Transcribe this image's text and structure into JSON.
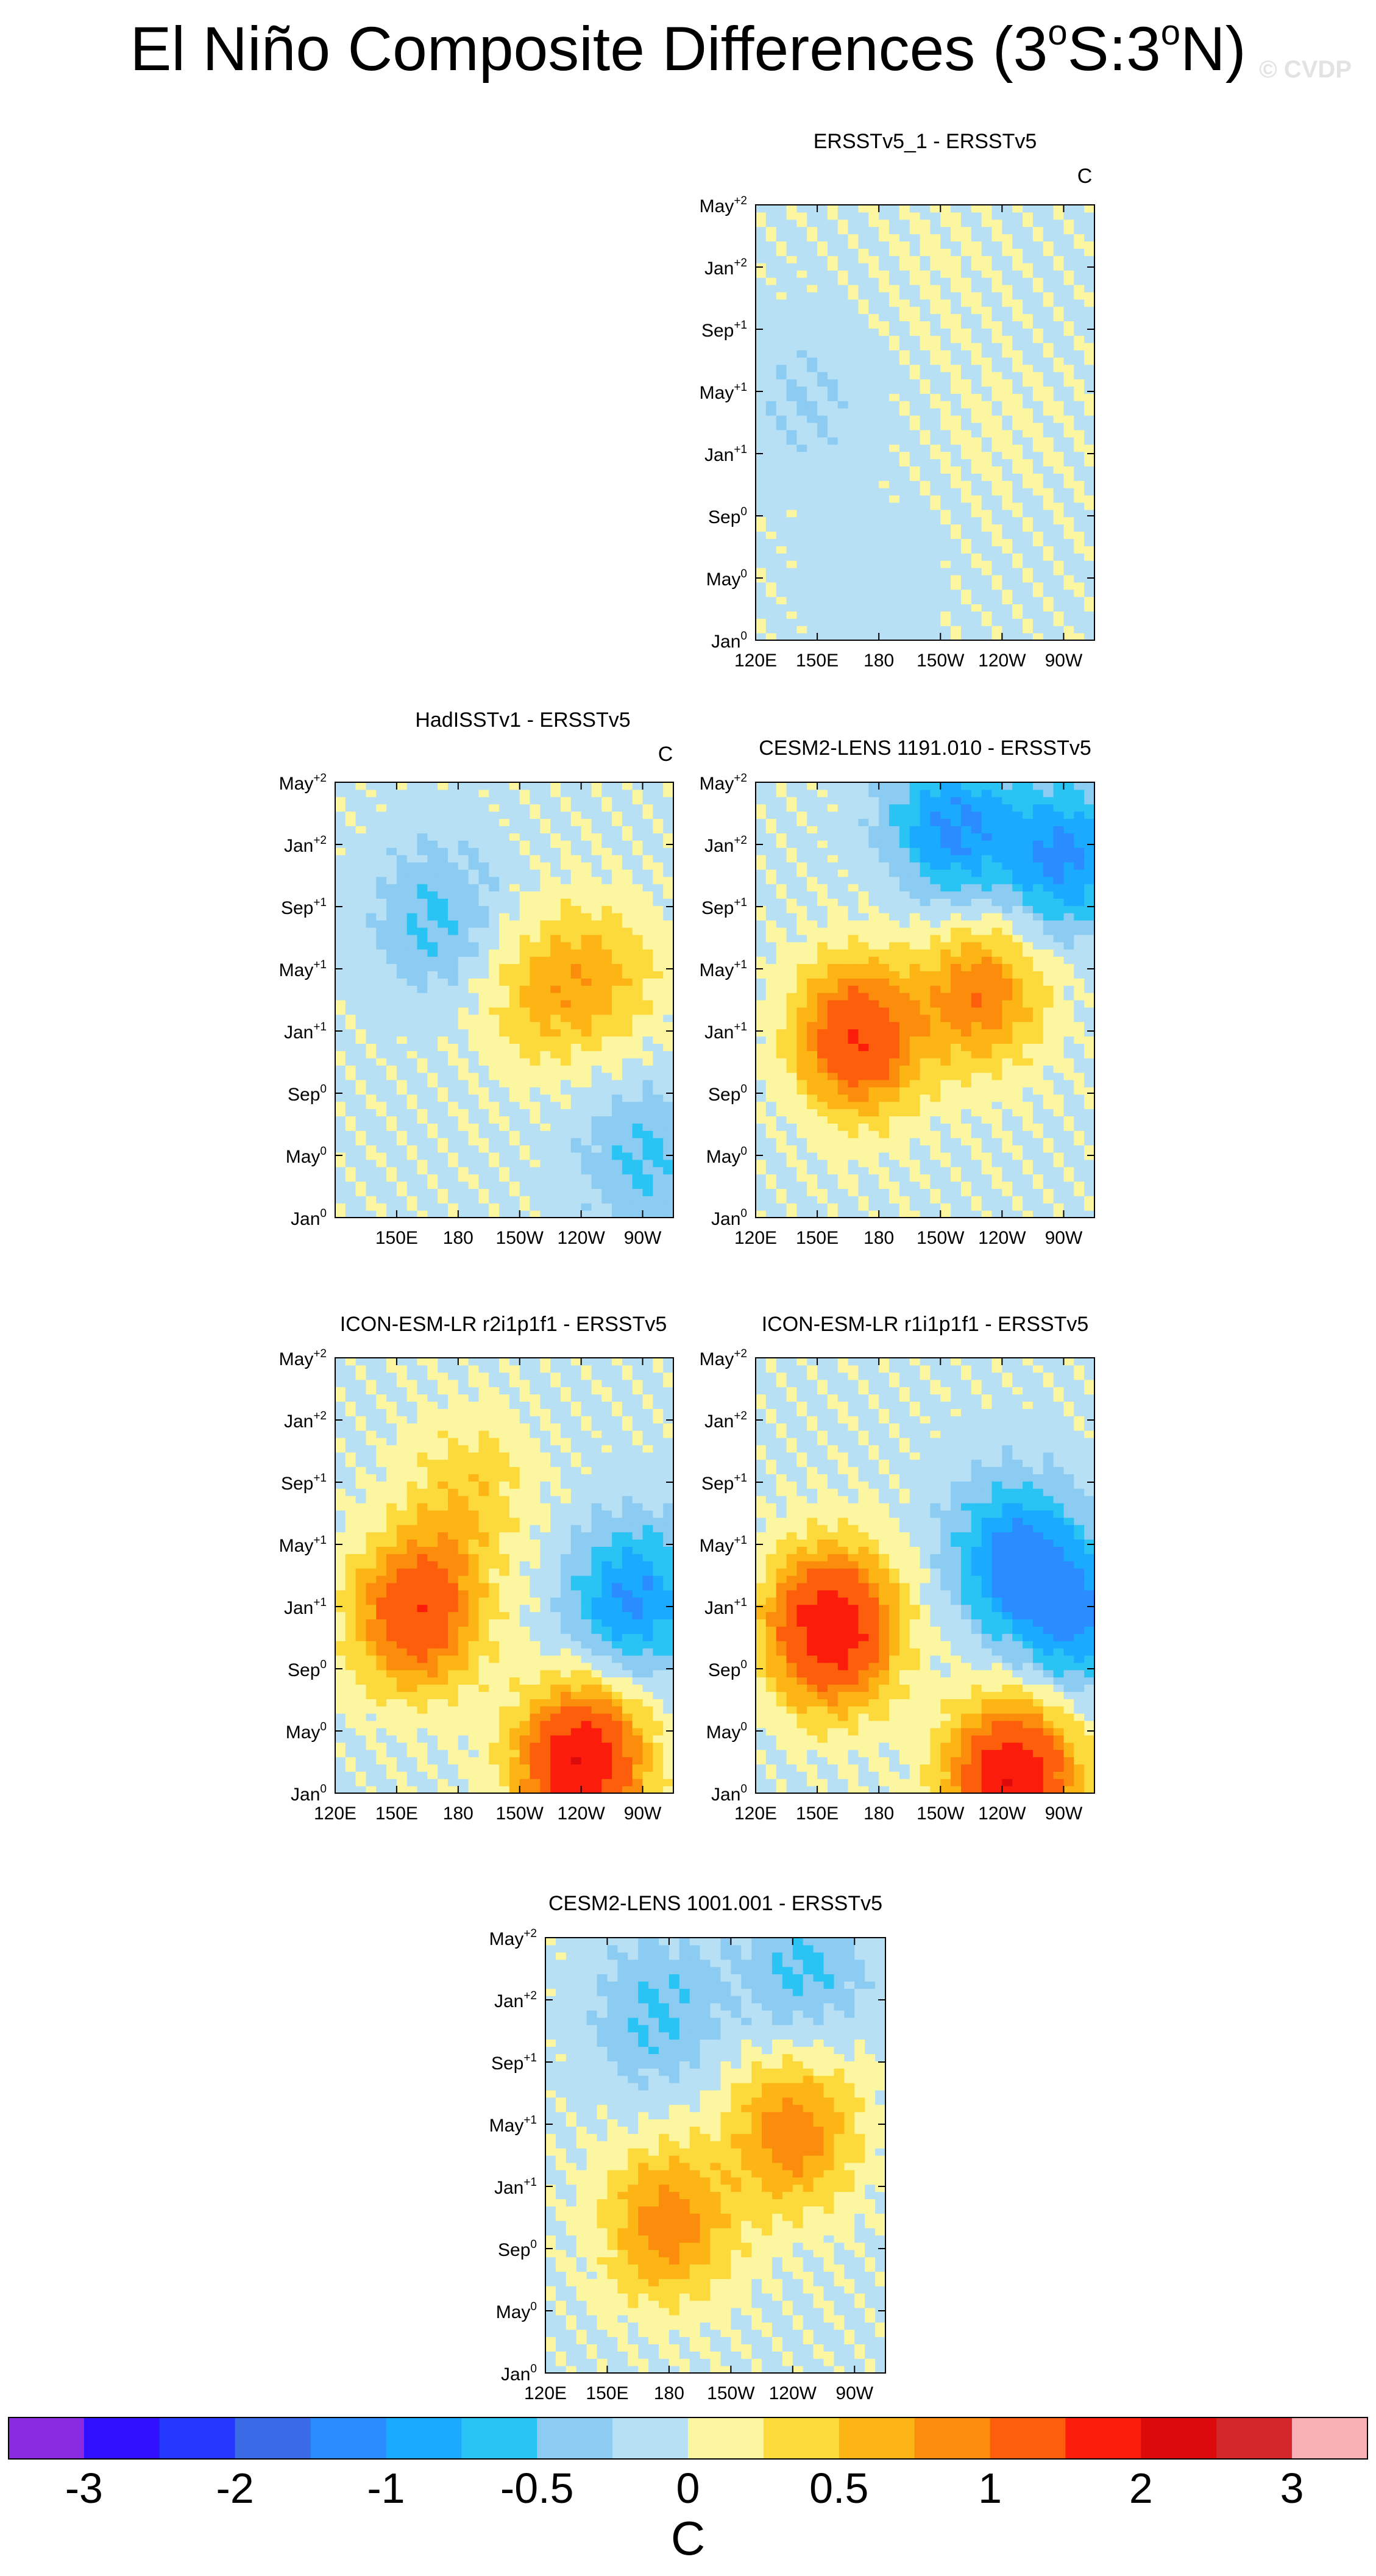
{
  "title": {
    "main": "El Niño Composite Differences (3",
    "deg1": "o",
    "s": "S:3",
    "deg2": "o",
    "n": "N)"
  },
  "watermark": "© CVDP",
  "units": "C",
  "x_ticks": [
    "120E",
    "150E",
    "180",
    "150W",
    "120W",
    "90W"
  ],
  "x_ticks_without_120E": [
    "150E",
    "180",
    "150W",
    "120W",
    "90W"
  ],
  "y_ticks": [
    {
      "label": "Jan",
      "sup": "0"
    },
    {
      "label": "May",
      "sup": "0"
    },
    {
      "label": "Sep",
      "sup": "0"
    },
    {
      "label": "Jan",
      "sup": "+1"
    },
    {
      "label": "May",
      "sup": "+1"
    },
    {
      "label": "Sep",
      "sup": "+1"
    },
    {
      "label": "Jan",
      "sup": "+2"
    },
    {
      "label": "May",
      "sup": "+2"
    }
  ],
  "colorbar": {
    "colors": [
      "#8a2be2",
      "#3010ff",
      "#2438ff",
      "#3a6ae6",
      "#2a8cff",
      "#1aaaff",
      "#2ac4f4",
      "#8ccbf2",
      "#b8e0f4",
      "#fdf6a0",
      "#fdda3c",
      "#fcb514",
      "#fc8c0c",
      "#fc5e0c",
      "#fc1c0c",
      "#dc0a0a",
      "#d2282c",
      "#f8b0b4"
    ],
    "labels": [
      "-3",
      "-2",
      "-1",
      "-0.5",
      "0",
      "0.5",
      "1",
      "2",
      "3"
    ],
    "unit_label": "C"
  },
  "chart_data": [
    {
      "type": "heatmap",
      "title": "ERSSTv5_1 - ERSSTv5",
      "unit_label": "C",
      "xlabel": "",
      "ylabel": "",
      "x_ticks": [
        "120E",
        "150E",
        "180",
        "150W",
        "120W",
        "90W"
      ],
      "y_ticks": [
        "Jan0",
        "May0",
        "Sep0",
        "Jan+1",
        "May+1",
        "Sep+1",
        "Jan+2",
        "May+2"
      ],
      "features": [
        {
          "lon": 175,
          "month": 4,
          "value": -0.1
        },
        {
          "lon": 145,
          "month": 16,
          "value": -0.2
        },
        {
          "lon": 240,
          "month": 14,
          "value": 0.1
        },
        {
          "lon": 210,
          "month": 25,
          "value": 0.1
        }
      ]
    },
    {
      "type": "heatmap",
      "title": "HadISSTv1 - ERSSTv5",
      "unit_label": "C",
      "xlabel": "",
      "ylabel": "",
      "x_ticks": [
        "150E",
        "180",
        "150W",
        "120W",
        "90W"
      ],
      "y_ticks": [
        "Jan0",
        "May0",
        "Sep0",
        "Jan+1",
        "May+1",
        "Sep+1",
        "Jan+2",
        "May+2"
      ],
      "features": [
        {
          "lon": 220,
          "month": 15,
          "value": 0.5
        },
        {
          "lon": 250,
          "month": 16,
          "value": 0.5
        },
        {
          "lon": 170,
          "month": 20,
          "value": -0.5
        },
        {
          "lon": 270,
          "month": 4,
          "value": -0.5
        }
      ]
    },
    {
      "type": "heatmap",
      "title": "CESM2-LENS 1191.010 - ERSSTv5",
      "unit_label": "C",
      "xlabel": "",
      "ylabel": "",
      "x_ticks": [
        "120E",
        "150E",
        "180",
        "150W",
        "120W",
        "90W"
      ],
      "y_ticks": [
        "Jan0",
        "May0",
        "Sep0",
        "Jan+1",
        "May+1",
        "Sep+1",
        "Jan+2",
        "May+2"
      ],
      "features": [
        {
          "lon": 170,
          "month": 12,
          "value": 1.5
        },
        {
          "lon": 230,
          "month": 15,
          "value": 1.0
        },
        {
          "lon": 215,
          "month": 26,
          "value": -1.0
        },
        {
          "lon": 270,
          "month": 24,
          "value": -1.0
        }
      ]
    },
    {
      "type": "heatmap",
      "title": "ICON-ESM-LR r2i1p1f1 - ERSSTv5",
      "unit_label": "C",
      "xlabel": "",
      "ylabel": "",
      "x_ticks": [
        "120E",
        "150E",
        "180",
        "150W",
        "120W",
        "90W"
      ],
      "y_ticks": [
        "Jan0",
        "May0",
        "Sep0",
        "Jan+1",
        "May+1",
        "Sep+1",
        "Jan+2",
        "May+2"
      ],
      "features": [
        {
          "lon": 160,
          "month": 12,
          "value": 1.5
        },
        {
          "lon": 240,
          "month": 2,
          "value": 2.0
        },
        {
          "lon": 265,
          "month": 13,
          "value": -1.0
        },
        {
          "lon": 185,
          "month": 20,
          "value": 0.5
        }
      ]
    },
    {
      "type": "heatmap",
      "title": "ICON-ESM-LR r1i1p1f1 - ERSSTv5",
      "unit_label": "C",
      "xlabel": "",
      "ylabel": "",
      "x_ticks": [
        "120E",
        "150E",
        "180",
        "150W",
        "120W",
        "90W"
      ],
      "y_ticks": [
        "Jan0",
        "May0",
        "Sep0",
        "Jan+1",
        "May+1",
        "Sep+1",
        "Jan+2",
        "May+2"
      ],
      "features": [
        {
          "lon": 157,
          "month": 11,
          "value": 2.0
        },
        {
          "lon": 245,
          "month": 1,
          "value": 2.0
        },
        {
          "lon": 245,
          "month": 16,
          "value": -1.0
        },
        {
          "lon": 275,
          "month": 12,
          "value": -1.0
        }
      ]
    },
    {
      "type": "heatmap",
      "title": "CESM2-LENS 1001.001 - ERSSTv5",
      "unit_label": "",
      "xlabel": "",
      "ylabel": "",
      "x_ticks": [
        "120E",
        "150E",
        "180",
        "150W",
        "120W",
        "90W"
      ],
      "y_ticks": [
        "Jan0",
        "May0",
        "Sep0",
        "Jan+1",
        "May+1",
        "Sep+1",
        "Jan+2",
        "May+2"
      ],
      "features": [
        {
          "lon": 180,
          "month": 10,
          "value": 1.0
        },
        {
          "lon": 240,
          "month": 16,
          "value": 1.0
        },
        {
          "lon": 175,
          "month": 24,
          "value": -0.5
        },
        {
          "lon": 245,
          "month": 27,
          "value": -0.5
        }
      ]
    }
  ]
}
